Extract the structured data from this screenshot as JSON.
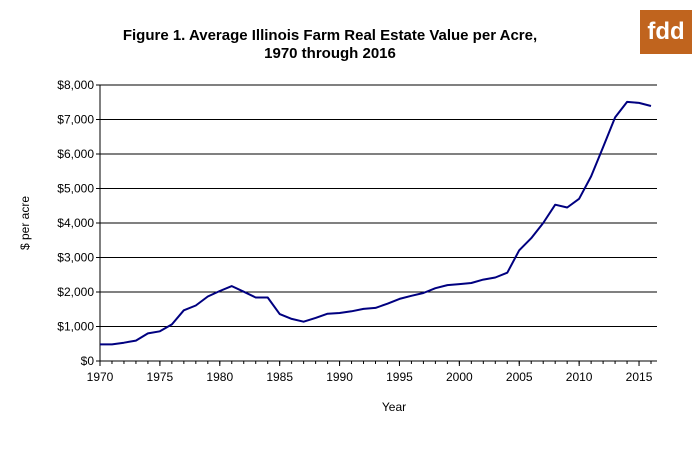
{
  "logo_text": "fdd",
  "chart_data": {
    "type": "line",
    "title_line1": "Figure 1.  Average Illinois Farm Real Estate Value per Acre,",
    "title_line2": "1970 through 2016",
    "xlabel": "Year",
    "ylabel": "$ per acre",
    "xlim": [
      1970,
      2016.5
    ],
    "ylim": [
      0,
      8000
    ],
    "x_ticks": [
      1970,
      1975,
      1980,
      1985,
      1990,
      1995,
      2000,
      2005,
      2010,
      2015
    ],
    "y_ticks": [
      {
        "value": 0,
        "label": "$0"
      },
      {
        "value": 1000,
        "label": "$1,000"
      },
      {
        "value": 2000,
        "label": "$2,000"
      },
      {
        "value": 3000,
        "label": "$3,000"
      },
      {
        "value": 4000,
        "label": "$4,000"
      },
      {
        "value": 5000,
        "label": "$5,000"
      },
      {
        "value": 6000,
        "label": "$6,000"
      },
      {
        "value": 7000,
        "label": "$7,000"
      },
      {
        "value": 8000,
        "label": "$8,000"
      }
    ],
    "grid": "horizontal",
    "line_color": "#000080",
    "x": [
      1970,
      1971,
      1972,
      1973,
      1974,
      1975,
      1976,
      1977,
      1978,
      1979,
      1980,
      1981,
      1982,
      1983,
      1984,
      1985,
      1986,
      1987,
      1988,
      1989,
      1990,
      1991,
      1992,
      1993,
      1994,
      1995,
      1996,
      1997,
      1998,
      1999,
      2000,
      2001,
      2002,
      2003,
      2004,
      2005,
      2006,
      2007,
      2008,
      2009,
      2010,
      2011,
      2012,
      2013,
      2014,
      2015,
      2016
    ],
    "values": [
      480,
      480,
      530,
      590,
      800,
      860,
      1060,
      1470,
      1610,
      1870,
      2030,
      2170,
      2010,
      1840,
      1840,
      1360,
      1220,
      1140,
      1250,
      1370,
      1390,
      1440,
      1510,
      1540,
      1660,
      1800,
      1890,
      1970,
      2110,
      2200,
      2230,
      2260,
      2360,
      2420,
      2560,
      3210,
      3560,
      4000,
      4530,
      4450,
      4700,
      5350,
      6200,
      7060,
      7510,
      7480,
      7390
    ]
  }
}
